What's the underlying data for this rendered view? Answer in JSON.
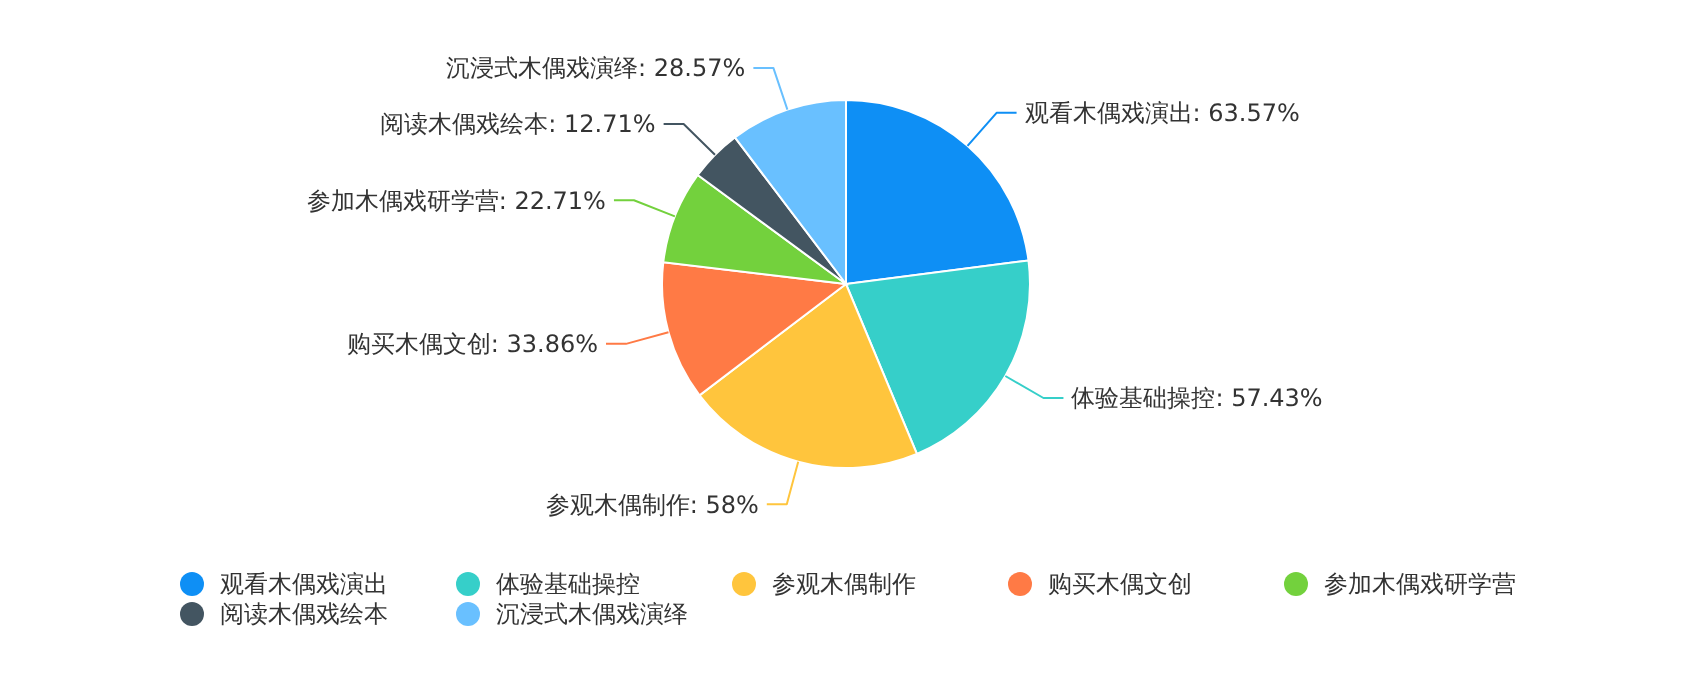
{
  "chart_data": {
    "type": "pie",
    "categories": [
      "观看木偶戏演出",
      "体验基础操控",
      "参观木偶制作",
      "购买木偶文创",
      "参加木偶戏研学营",
      "阅读木偶戏绘本",
      "沉浸式木偶戏演绎"
    ],
    "values": [
      63.57,
      57.43,
      58,
      33.86,
      22.71,
      12.71,
      28.57
    ],
    "value_labels": [
      "观看木偶戏演出: 63.57%",
      "体验基础操控: 57.43%",
      "参观木偶制作: 58%",
      "购买木偶文创: 33.86%",
      "参加木偶戏研学营: 22.71%",
      "阅读木偶戏绘本: 12.71%",
      "沉浸式木偶戏演绎: 28.57%"
    ],
    "colors": [
      "#0e8ff5",
      "#36cfc9",
      "#ffc53d",
      "#ff7a45",
      "#73d13d",
      "#435561",
      "#69c0ff"
    ],
    "legend": "bottom"
  }
}
